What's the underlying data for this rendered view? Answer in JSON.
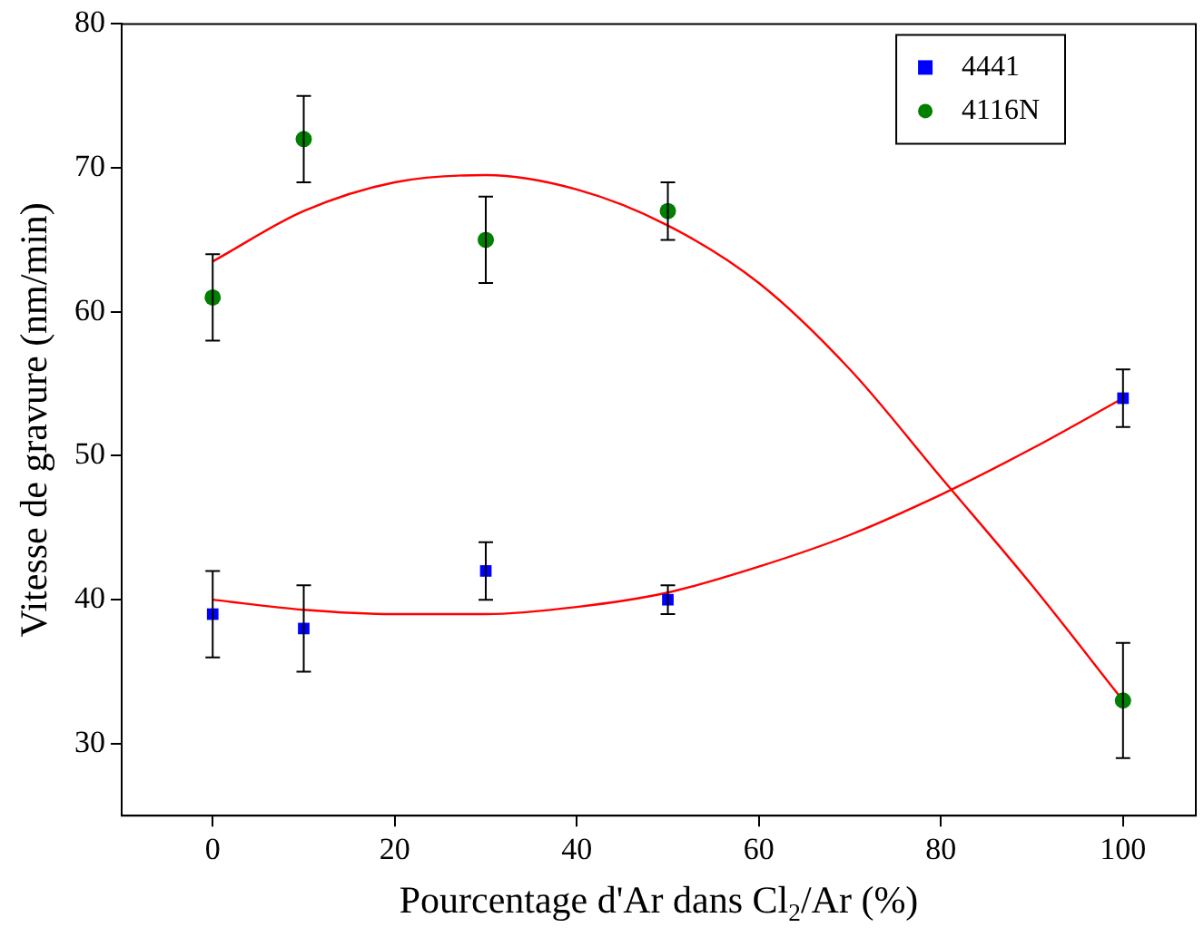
{
  "chart_data": {
    "type": "scatter",
    "xlabel": "Pourcentage d'Ar dans Cl$_{2}$/Ar (%)",
    "ylabel": "Vitesse de gravure (nm/min)",
    "xlim": [
      -10,
      108
    ],
    "xticks": [
      0,
      20,
      40,
      60,
      80,
      100
    ],
    "ylim": [
      25,
      80
    ],
    "yticks": [
      30,
      40,
      50,
      60,
      70,
      80
    ],
    "legend": "top right",
    "grid": false,
    "series": [
      {
        "name": "4441",
        "color": "#0000ff",
        "marker": "square",
        "x": [
          0,
          10,
          30,
          50,
          100
        ],
        "values": [
          39,
          38,
          42,
          40,
          54
        ],
        "errors": [
          3,
          3,
          2,
          1,
          2
        ]
      },
      {
        "name": "4116N",
        "color": "#007f00",
        "marker": "circle",
        "x": [
          0,
          10,
          30,
          50,
          100
        ],
        "values": [
          61,
          72,
          65,
          67,
          33
        ],
        "errors": [
          3,
          3,
          3,
          2,
          4
        ]
      },
      {
        "type": "line",
        "color": "#ff0000",
        "marker": "none",
        "x": [
          0,
          10,
          20,
          30,
          40,
          50,
          60,
          70,
          80,
          90,
          100
        ],
        "values": [
          40,
          39.3,
          39,
          39,
          39.5,
          40.5,
          42.3,
          44.5,
          47.3,
          50.5,
          54
        ]
      },
      {
        "type": "line",
        "color": "#ff0000",
        "marker": "none",
        "x": [
          0,
          10,
          20,
          30,
          40,
          50,
          60,
          70,
          80,
          90,
          100
        ],
        "values": [
          63.5,
          67,
          69,
          69.5,
          68.5,
          66,
          62,
          56,
          48.5,
          41,
          33
        ]
      }
    ]
  }
}
